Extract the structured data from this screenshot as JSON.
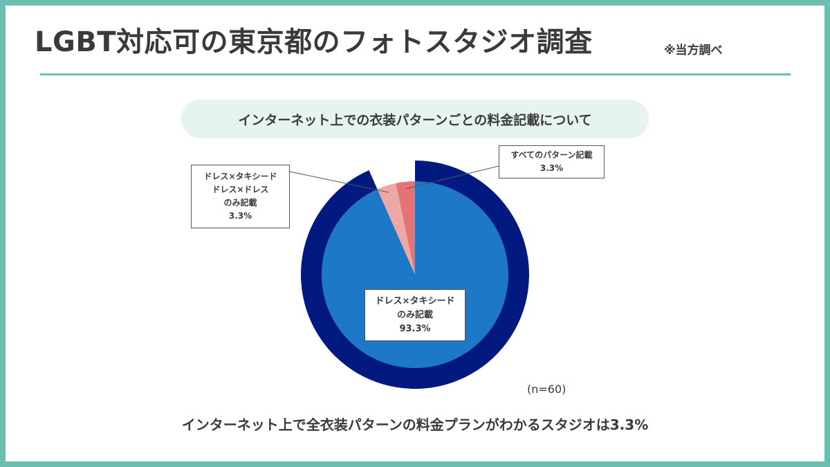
{
  "header": {
    "title": "LGBT対応可の東京都のフォトスタジオ調査",
    "source_note": "※当方調べ"
  },
  "subtitle": "インターネット上での衣装パターンごとの料金記載について",
  "chart_data": {
    "type": "pie",
    "title": "インターネット上での衣装パターンごとの料金記載について",
    "slices": [
      {
        "label_lines": [
          "ドレス×タキシード",
          "のみ記載"
        ],
        "value": 93.3,
        "value_label": "93.3%",
        "color": "#1e78c8",
        "outer_ring_color": "#021a80"
      },
      {
        "label_lines": [
          "ドレス×タキシード",
          "ドレス×ドレス",
          "のみ記載"
        ],
        "value": 3.3,
        "value_label": "3.3%",
        "color": "#efa8a8"
      },
      {
        "label_lines": [
          "すべてのパターン記載"
        ],
        "value": 3.3,
        "value_label": "3.3%",
        "color": "#e67373"
      }
    ],
    "sample_size": "(n=60)",
    "legend": "callouts"
  },
  "conclusion": "インターネット上で全衣装パターンの料金プランがわかるスタジオは3.3%",
  "colors": {
    "frame": "#6abfb0",
    "pill_bg": "#e6f3f1",
    "text": "#3a3a3a"
  }
}
